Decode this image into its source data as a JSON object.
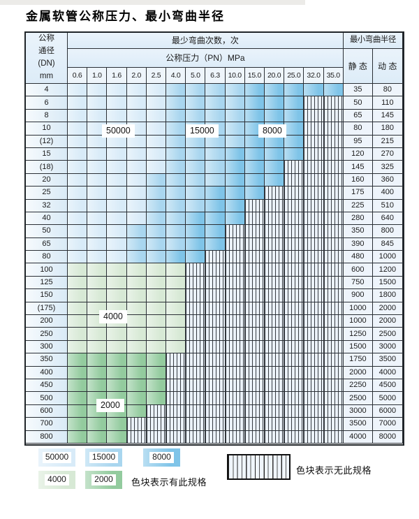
{
  "title": "金属软管公称压力、最小弯曲半径",
  "header": {
    "dn_lines": [
      "公称",
      "通径",
      "(DN)",
      "mm"
    ],
    "cycles_title": "最少弯曲次数，次",
    "pn_title": "公称压力（PN）MPa",
    "radius_title": "最小弯曲半径",
    "static_label": "静 态",
    "dynamic_label": "动 态"
  },
  "columns": [
    "0.6",
    "1.0",
    "1.6",
    "2.0",
    "2.5",
    "4.0",
    "5.0",
    "6.3",
    "10.0",
    "15.0",
    "20.0",
    "25.0",
    "32.0",
    "35.0"
  ],
  "overlay_labels": [
    "50000",
    "15000",
    "8000",
    "4000",
    "2000"
  ],
  "rows": [
    {
      "dn": "4",
      "bands": [
        [
          "50000",
          5
        ],
        [
          "15000",
          9
        ],
        [
          "8000",
          14
        ]
      ],
      "static": "35",
      "dynamic": "80"
    },
    {
      "dn": "6",
      "bands": [
        [
          "50000",
          5
        ],
        [
          "15000",
          9
        ],
        [
          "8000",
          12
        ]
      ],
      "static": "50",
      "dynamic": "110"
    },
    {
      "dn": "8",
      "bands": [
        [
          "50000",
          5
        ],
        [
          "15000",
          9
        ],
        [
          "8000",
          12
        ]
      ],
      "static": "65",
      "dynamic": "145"
    },
    {
      "dn": "10",
      "bands": [
        [
          "50000",
          5
        ],
        [
          "15000",
          9
        ],
        [
          "8000",
          12
        ]
      ],
      "static": "80",
      "dynamic": "180"
    },
    {
      "dn": "(12)",
      "bands": [
        [
          "50000",
          5
        ],
        [
          "15000",
          9
        ],
        [
          "8000",
          12
        ]
      ],
      "static": "95",
      "dynamic": "215"
    },
    {
      "dn": "15",
      "bands": [
        [
          "50000",
          5
        ],
        [
          "15000",
          8
        ],
        [
          "8000",
          12
        ]
      ],
      "static": "120",
      "dynamic": "270"
    },
    {
      "dn": "(18)",
      "bands": [
        [
          "50000",
          5
        ],
        [
          "15000",
          8
        ],
        [
          "8000",
          11
        ]
      ],
      "static": "145",
      "dynamic": "325"
    },
    {
      "dn": "20",
      "bands": [
        [
          "50000",
          4
        ],
        [
          "15000",
          8
        ],
        [
          "8000",
          11
        ]
      ],
      "static": "160",
      "dynamic": "360"
    },
    {
      "dn": "25",
      "bands": [
        [
          "50000",
          4
        ],
        [
          "15000",
          7
        ],
        [
          "8000",
          10
        ]
      ],
      "static": "175",
      "dynamic": "400"
    },
    {
      "dn": "32",
      "bands": [
        [
          "50000",
          4
        ],
        [
          "15000",
          7
        ],
        [
          "8000",
          9
        ]
      ],
      "static": "225",
      "dynamic": "510"
    },
    {
      "dn": "40",
      "bands": [
        [
          "50000",
          4
        ],
        [
          "15000",
          6
        ],
        [
          "8000",
          9
        ]
      ],
      "static": "280",
      "dynamic": "640"
    },
    {
      "dn": "50",
      "bands": [
        [
          "50000",
          3
        ],
        [
          "15000",
          6
        ],
        [
          "8000",
          8
        ]
      ],
      "static": "350",
      "dynamic": "800"
    },
    {
      "dn": "65",
      "bands": [
        [
          "50000",
          3
        ],
        [
          "15000",
          6
        ],
        [
          "8000",
          8
        ]
      ],
      "static": "390",
      "dynamic": "845"
    },
    {
      "dn": "80",
      "bands": [
        [
          "50000",
          3
        ],
        [
          "15000",
          5
        ],
        [
          "8000",
          7
        ]
      ],
      "static": "480",
      "dynamic": "1000"
    },
    {
      "dn": "100",
      "bands": [
        [
          "4000",
          6
        ]
      ],
      "static": "600",
      "dynamic": "1200"
    },
    {
      "dn": "125",
      "bands": [
        [
          "4000",
          6
        ]
      ],
      "static": "750",
      "dynamic": "1500"
    },
    {
      "dn": "150",
      "bands": [
        [
          "4000",
          6
        ]
      ],
      "static": "900",
      "dynamic": "1800"
    },
    {
      "dn": "(175)",
      "bands": [
        [
          "4000",
          6
        ]
      ],
      "static": "1000",
      "dynamic": "2000"
    },
    {
      "dn": "200",
      "bands": [
        [
          "4000",
          6
        ]
      ],
      "static": "1000",
      "dynamic": "2000"
    },
    {
      "dn": "250",
      "bands": [
        [
          "4000",
          6
        ]
      ],
      "static": "1250",
      "dynamic": "2500"
    },
    {
      "dn": "300",
      "bands": [
        [
          "4000",
          6
        ]
      ],
      "static": "1500",
      "dynamic": "3000"
    },
    {
      "dn": "350",
      "bands": [
        [
          "2000",
          5
        ]
      ],
      "static": "1750",
      "dynamic": "3500"
    },
    {
      "dn": "400",
      "bands": [
        [
          "2000",
          5
        ]
      ],
      "static": "2000",
      "dynamic": "4000"
    },
    {
      "dn": "450",
      "bands": [
        [
          "2000",
          5
        ]
      ],
      "static": "2250",
      "dynamic": "4500"
    },
    {
      "dn": "500",
      "bands": [
        [
          "2000",
          5
        ]
      ],
      "static": "2500",
      "dynamic": "5000"
    },
    {
      "dn": "600",
      "bands": [
        [
          "2000",
          4
        ]
      ],
      "static": "3000",
      "dynamic": "6000"
    },
    {
      "dn": "700",
      "bands": [
        [
          "2000",
          3
        ]
      ],
      "static": "3500",
      "dynamic": "7000"
    },
    {
      "dn": "800",
      "bands": [
        [
          "2000",
          3
        ]
      ],
      "static": "4000",
      "dynamic": "8000"
    }
  ],
  "legend": {
    "swatches": [
      {
        "value": "50000"
      },
      {
        "value": "15000"
      },
      {
        "value": "8000"
      },
      {
        "value": "4000"
      },
      {
        "value": "2000"
      }
    ],
    "has_spec_note": "色块表示有此规格",
    "no_spec_note": "色块表示无此规格"
  },
  "colors": {
    "cycles_50000": "#d8ebf8",
    "cycles_15000": "#a9d6ef",
    "cycles_8000": "#7fc4e8",
    "cycles_4000": "#d7e9d5",
    "cycles_2000": "#93cb9e",
    "hatch_bg": "#ebf2fa",
    "grid_line": "#2a2f35"
  }
}
